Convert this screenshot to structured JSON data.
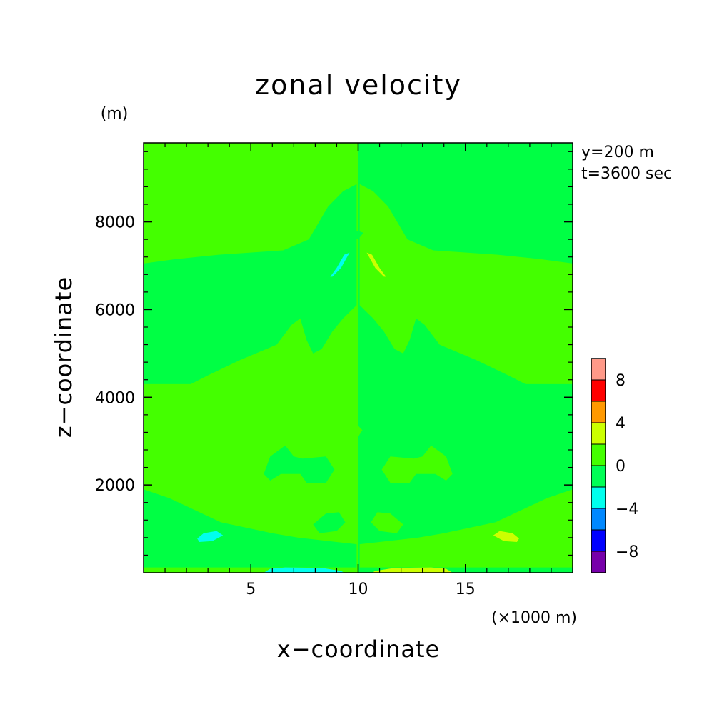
{
  "chart_data": {
    "type": "heatmap",
    "title": "zonal velocity",
    "xlabel": "x−coordinate",
    "ylabel": "z−coordinate",
    "x_unit": "(×1000 m)",
    "y_unit": "(m)",
    "annotations": [
      "y=200 m",
      "t=3600 sec"
    ],
    "xlim": [
      0,
      20
    ],
    "ylim": [
      0,
      9800
    ],
    "x_ticks": [
      5,
      10,
      15
    ],
    "y_ticks": [
      2000,
      4000,
      6000,
      8000
    ],
    "x_tick_labels": [
      "5",
      "10",
      "15"
    ],
    "y_tick_labels": [
      "2000",
      "4000",
      "6000",
      "8000"
    ],
    "background_colors": {
      "left": "#44ff00",
      "right": "#00ff44"
    },
    "colorbar": {
      "levels": [
        -10,
        -8,
        -6,
        -4,
        -2,
        0,
        2,
        4,
        6,
        8,
        10
      ],
      "colors": [
        "#7700aa",
        "#0000ff",
        "#0088ff",
        "#00ffee",
        "#00ff55",
        "#44ff00",
        "#ccff00",
        "#ff9900",
        "#ff0000",
        "#ff9988"
      ],
      "tick_values": [
        -8,
        -4,
        0,
        4,
        8
      ],
      "tick_labels": [
        "−8",
        "−4",
        "0",
        "4",
        "8"
      ]
    },
    "regions": [
      {
        "name": "upper-left band",
        "value_range": [
          -2,
          0
        ],
        "color": "#00ff44",
        "points": [
          [
            0,
            7050
          ],
          [
            1.5,
            7150
          ],
          [
            3.5,
            7250
          ],
          [
            6.5,
            7350
          ],
          [
            7.7,
            7600
          ],
          [
            8.6,
            8350
          ],
          [
            9.3,
            8700
          ],
          [
            9.93,
            8860
          ],
          [
            9.93,
            6100
          ],
          [
            9.3,
            5800
          ],
          [
            8.8,
            5500
          ],
          [
            8.3,
            5100
          ],
          [
            7.9,
            5000
          ],
          [
            7.6,
            5300
          ],
          [
            7.3,
            5800
          ],
          [
            6.9,
            5650
          ],
          [
            6.2,
            5200
          ],
          [
            4.5,
            4850
          ],
          [
            3,
            4500
          ],
          [
            2.2,
            4300
          ],
          [
            0,
            4300
          ]
        ]
      },
      {
        "name": "upper-right band",
        "value_range": [
          0,
          2
        ],
        "color": "#44ff00",
        "points": [
          [
            10.07,
            8860
          ],
          [
            10.7,
            8700
          ],
          [
            11.4,
            8350
          ],
          [
            12.3,
            7600
          ],
          [
            13.5,
            7350
          ],
          [
            16.5,
            7250
          ],
          [
            18.5,
            7150
          ],
          [
            20,
            7050
          ],
          [
            20,
            4300
          ],
          [
            17.8,
            4300
          ],
          [
            17,
            4500
          ],
          [
            15.5,
            4850
          ],
          [
            13.8,
            5200
          ],
          [
            13.1,
            5650
          ],
          [
            12.7,
            5800
          ],
          [
            12.4,
            5300
          ],
          [
            12.1,
            5000
          ],
          [
            11.7,
            5100
          ],
          [
            11.2,
            5500
          ],
          [
            10.7,
            5800
          ],
          [
            10.07,
            6100
          ]
        ]
      },
      {
        "name": "lower-left band",
        "value_range": [
          -2,
          0
        ],
        "color": "#00ff44",
        "points": [
          [
            0,
            1900
          ],
          [
            1.2,
            1700
          ],
          [
            3.6,
            1150
          ],
          [
            6,
            900
          ],
          [
            7.2,
            800
          ],
          [
            9,
            700
          ],
          [
            9.93,
            650
          ],
          [
            9.93,
            120
          ],
          [
            0,
            120
          ]
        ]
      },
      {
        "name": "lower-right band",
        "value_range": [
          0,
          2
        ],
        "color": "#44ff00",
        "points": [
          [
            10.07,
            650
          ],
          [
            11,
            700
          ],
          [
            12.8,
            800
          ],
          [
            14,
            900
          ],
          [
            16.4,
            1150
          ],
          [
            18.8,
            1700
          ],
          [
            20,
            1900
          ],
          [
            20,
            120
          ],
          [
            10.07,
            120
          ]
        ]
      },
      {
        "name": "mid-left blob",
        "value_range": [
          -2,
          0
        ],
        "color": "#00ff44",
        "points": [
          [
            5.6,
            2250
          ],
          [
            5.9,
            2650
          ],
          [
            6.6,
            2900
          ],
          [
            7,
            2650
          ],
          [
            7.4,
            2600
          ],
          [
            8.5,
            2650
          ],
          [
            8.9,
            2350
          ],
          [
            8.5,
            2050
          ],
          [
            7.6,
            2050
          ],
          [
            7.3,
            2250
          ],
          [
            6.4,
            2250
          ],
          [
            5.9,
            2100
          ]
        ]
      },
      {
        "name": "mid-right blob",
        "value_range": [
          0,
          2
        ],
        "color": "#44ff00",
        "points": [
          [
            14.4,
            2250
          ],
          [
            14.1,
            2650
          ],
          [
            13.4,
            2900
          ],
          [
            13,
            2650
          ],
          [
            12.6,
            2600
          ],
          [
            11.5,
            2650
          ],
          [
            11.1,
            2350
          ],
          [
            11.5,
            2050
          ],
          [
            12.4,
            2050
          ],
          [
            12.7,
            2250
          ],
          [
            13.6,
            2250
          ],
          [
            14.1,
            2100
          ]
        ]
      },
      {
        "name": "low-left blob",
        "value_range": [
          -2,
          0
        ],
        "color": "#00ff44",
        "points": [
          [
            7.9,
            1100
          ],
          [
            8.5,
            1350
          ],
          [
            9.1,
            1380
          ],
          [
            9.4,
            1150
          ],
          [
            9.0,
            950
          ],
          [
            8.2,
            900
          ]
        ]
      },
      {
        "name": "low-right blob",
        "value_range": [
          0,
          2
        ],
        "color": "#44ff00",
        "points": [
          [
            12.1,
            1100
          ],
          [
            11.5,
            1350
          ],
          [
            10.9,
            1380
          ],
          [
            10.6,
            1150
          ],
          [
            11.0,
            950
          ],
          [
            11.8,
            900
          ]
        ]
      },
      {
        "name": "cyan upper",
        "value_range": [
          -4,
          -2
        ],
        "color": "#00ffee",
        "points": [
          [
            8.8,
            6750
          ],
          [
            9.2,
            6950
          ],
          [
            9.6,
            7300
          ],
          [
            9.35,
            7250
          ],
          [
            9.0,
            6950
          ],
          [
            8.7,
            6750
          ]
        ]
      },
      {
        "name": "yellow upper",
        "value_range": [
          2,
          4
        ],
        "color": "#ccff00",
        "points": [
          [
            11.2,
            6750
          ],
          [
            10.8,
            6950
          ],
          [
            10.4,
            7300
          ],
          [
            10.65,
            7250
          ],
          [
            11.0,
            6950
          ],
          [
            11.3,
            6750
          ]
        ]
      },
      {
        "name": "cyan lower",
        "value_range": [
          -4,
          -2
        ],
        "color": "#00ffee",
        "points": [
          [
            2.5,
            780
          ],
          [
            2.8,
            900
          ],
          [
            3.4,
            950
          ],
          [
            3.7,
            850
          ],
          [
            3.2,
            720
          ],
          [
            2.6,
            700
          ]
        ]
      },
      {
        "name": "yellow lower",
        "value_range": [
          2,
          4
        ],
        "color": "#ccff00",
        "points": [
          [
            17.5,
            780
          ],
          [
            17.2,
            900
          ],
          [
            16.6,
            950
          ],
          [
            16.3,
            850
          ],
          [
            16.8,
            720
          ],
          [
            17.4,
            700
          ]
        ]
      },
      {
        "name": "cyan bottom",
        "value_range": [
          -4,
          -2
        ],
        "color": "#00ffee",
        "points": [
          [
            5.6,
            0
          ],
          [
            5.9,
            90
          ],
          [
            6.6,
            120
          ],
          [
            8.3,
            110
          ],
          [
            9.2,
            40
          ],
          [
            9.35,
            0
          ]
        ]
      },
      {
        "name": "yellow bottom",
        "value_range": [
          2,
          4
        ],
        "color": "#ccff00",
        "points": [
          [
            14.4,
            0
          ],
          [
            14.1,
            90
          ],
          [
            13.4,
            120
          ],
          [
            11.7,
            110
          ],
          [
            10.8,
            40
          ],
          [
            10.65,
            0
          ]
        ]
      },
      {
        "name": "center speck upper",
        "value_range": [
          -2,
          0
        ],
        "color": "#00ff44",
        "points": [
          [
            9.7,
            7650
          ],
          [
            9.95,
            7800
          ],
          [
            10.25,
            7750
          ],
          [
            10.0,
            7600
          ]
        ]
      },
      {
        "name": "center speck lower",
        "value_range": [
          0,
          2
        ],
        "color": "#44ff00",
        "points": [
          [
            9.8,
            3150
          ],
          [
            10.0,
            3350
          ],
          [
            10.2,
            3250
          ],
          [
            10.0,
            3100
          ]
        ]
      }
    ]
  }
}
